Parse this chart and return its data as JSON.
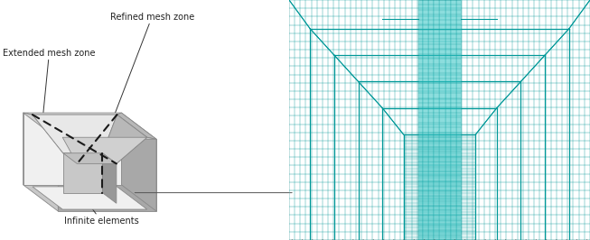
{
  "bg_color": "#ffffff",
  "left_panel": {
    "label_extended": "Extended mesh zone",
    "label_refined": "Refined mesh zone",
    "label_infinite": "Infinite elements",
    "font_size": 7.0,
    "colors": {
      "top_light": "#e8e8e8",
      "top_mid": "#d0d0d0",
      "top_dark": "#b8b8b8",
      "side_light": "#e0e0e0",
      "side_mid": "#c8c8c8",
      "side_dark": "#a8a8a8",
      "front_light": "#f0f0f0",
      "front_dark": "#d8d8d8",
      "inner_top": "#c0c0c0",
      "inner_side": "#989898",
      "edge": "#888888",
      "dashed": "#1a1a1a"
    }
  },
  "right_panel": {
    "bg_color": "#40c8c8",
    "mesh_line_color": "#009898",
    "dark_line_color": "#007070",
    "impactor_color": "#2aacac",
    "impactor_dark": "#1a8888",
    "impactor_rim": "#156060",
    "arrow_color": "#333333",
    "hatch_color": "#555555"
  }
}
